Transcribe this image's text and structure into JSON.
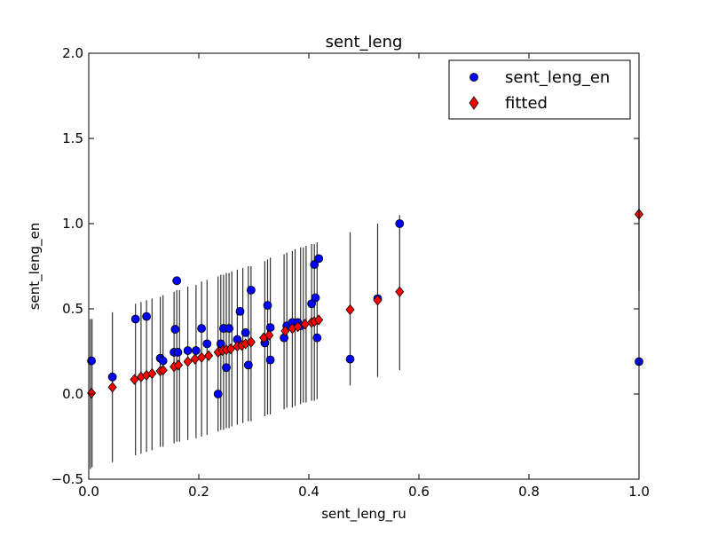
{
  "chart_data": {
    "type": "scatter",
    "title": "sent_leng",
    "xlabel": "sent_leng_ru",
    "ylabel": "sent_leng_en",
    "xlim": [
      0.0,
      1.0
    ],
    "ylim": [
      -0.5,
      2.0
    ],
    "xticks": [
      "0.0",
      "0.2",
      "0.4",
      "0.6",
      "0.8",
      "1.0"
    ],
    "yticks": [
      "−0.5",
      "0.0",
      "0.5",
      "1.0",
      "1.5",
      "2.0"
    ],
    "xtick_values": [
      0.0,
      0.2,
      0.4,
      0.6,
      0.8,
      1.0
    ],
    "ytick_values": [
      -0.5,
      0.0,
      0.5,
      1.0,
      1.5,
      2.0
    ],
    "grid": false,
    "legend_position": "top-right",
    "series": [
      {
        "name": "sent_leng_en",
        "marker": "circle",
        "color": "#0000ff",
        "points": [
          [
            0.005,
            0.195
          ],
          [
            0.043,
            0.1
          ],
          [
            0.085,
            0.44
          ],
          [
            0.105,
            0.455
          ],
          [
            0.13,
            0.21
          ],
          [
            0.135,
            0.195
          ],
          [
            0.157,
            0.38
          ],
          [
            0.16,
            0.665
          ],
          [
            0.155,
            0.245
          ],
          [
            0.162,
            0.245
          ],
          [
            0.18,
            0.255
          ],
          [
            0.195,
            0.255
          ],
          [
            0.205,
            0.385
          ],
          [
            0.215,
            0.295
          ],
          [
            0.235,
            0.0
          ],
          [
            0.24,
            0.295
          ],
          [
            0.245,
            0.385
          ],
          [
            0.25,
            0.155
          ],
          [
            0.255,
            0.385
          ],
          [
            0.27,
            0.32
          ],
          [
            0.275,
            0.485
          ],
          [
            0.285,
            0.36
          ],
          [
            0.29,
            0.17
          ],
          [
            0.295,
            0.61
          ],
          [
            0.32,
            0.3
          ],
          [
            0.325,
            0.52
          ],
          [
            0.33,
            0.39
          ],
          [
            0.33,
            0.2
          ],
          [
            0.355,
            0.33
          ],
          [
            0.36,
            0.4
          ],
          [
            0.37,
            0.42
          ],
          [
            0.38,
            0.42
          ],
          [
            0.385,
            0.4
          ],
          [
            0.405,
            0.53
          ],
          [
            0.41,
            0.76
          ],
          [
            0.412,
            0.565
          ],
          [
            0.415,
            0.33
          ],
          [
            0.418,
            0.795
          ],
          [
            0.475,
            0.205
          ],
          [
            0.525,
            0.56
          ],
          [
            0.565,
            1.0
          ],
          [
            1.0,
            0.19
          ]
        ]
      },
      {
        "name": "fitted",
        "marker": "diamond",
        "color": "#ff0000",
        "points": [
          [
            0.005,
            0.005
          ],
          [
            0.043,
            0.04
          ],
          [
            0.083,
            0.085
          ],
          [
            0.095,
            0.1
          ],
          [
            0.105,
            0.11
          ],
          [
            0.115,
            0.12
          ],
          [
            0.13,
            0.135
          ],
          [
            0.135,
            0.14
          ],
          [
            0.155,
            0.16
          ],
          [
            0.163,
            0.17
          ],
          [
            0.18,
            0.19
          ],
          [
            0.193,
            0.205
          ],
          [
            0.205,
            0.215
          ],
          [
            0.218,
            0.225
          ],
          [
            0.235,
            0.245
          ],
          [
            0.243,
            0.255
          ],
          [
            0.25,
            0.26
          ],
          [
            0.258,
            0.265
          ],
          [
            0.27,
            0.28
          ],
          [
            0.278,
            0.285
          ],
          [
            0.285,
            0.295
          ],
          [
            0.295,
            0.305
          ],
          [
            0.318,
            0.33
          ],
          [
            0.328,
            0.345
          ],
          [
            0.357,
            0.37
          ],
          [
            0.37,
            0.385
          ],
          [
            0.38,
            0.395
          ],
          [
            0.393,
            0.41
          ],
          [
            0.405,
            0.42
          ],
          [
            0.41,
            0.425
          ],
          [
            0.418,
            0.435
          ],
          [
            0.475,
            0.495
          ],
          [
            0.525,
            0.55
          ],
          [
            0.565,
            0.6
          ],
          [
            1.0,
            1.055
          ]
        ]
      }
    ],
    "error_bars": {
      "color": "#333333",
      "segments": [
        [
          0.003,
          -0.44,
          0.44
        ],
        [
          0.006,
          -0.43,
          0.44
        ],
        [
          0.043,
          -0.4,
          0.48
        ],
        [
          0.085,
          -0.36,
          0.53
        ],
        [
          0.095,
          -0.35,
          0.54
        ],
        [
          0.105,
          -0.34,
          0.55
        ],
        [
          0.115,
          -0.33,
          0.56
        ],
        [
          0.13,
          -0.31,
          0.57
        ],
        [
          0.135,
          -0.31,
          0.58
        ],
        [
          0.155,
          -0.29,
          0.6
        ],
        [
          0.16,
          -0.28,
          0.61
        ],
        [
          0.165,
          -0.28,
          0.61
        ],
        [
          0.18,
          -0.27,
          0.63
        ],
        [
          0.195,
          -0.26,
          0.64
        ],
        [
          0.205,
          -0.25,
          0.66
        ],
        [
          0.215,
          -0.24,
          0.67
        ],
        [
          0.235,
          -0.22,
          0.69
        ],
        [
          0.24,
          -0.21,
          0.7
        ],
        [
          0.245,
          -0.21,
          0.7
        ],
        [
          0.25,
          -0.2,
          0.71
        ],
        [
          0.255,
          -0.2,
          0.71
        ],
        [
          0.26,
          -0.19,
          0.72
        ],
        [
          0.27,
          -0.18,
          0.73
        ],
        [
          0.28,
          -0.17,
          0.74
        ],
        [
          0.29,
          -0.16,
          0.75
        ],
        [
          0.295,
          -0.16,
          0.75
        ],
        [
          0.32,
          -0.13,
          0.78
        ],
        [
          0.325,
          -0.12,
          0.79
        ],
        [
          0.33,
          -0.12,
          0.8
        ],
        [
          0.355,
          -0.09,
          0.82
        ],
        [
          0.36,
          -0.08,
          0.83
        ],
        [
          0.37,
          -0.08,
          0.84
        ],
        [
          0.375,
          -0.07,
          0.85
        ],
        [
          0.385,
          -0.06,
          0.86
        ],
        [
          0.39,
          -0.05,
          0.86
        ],
        [
          0.395,
          -0.05,
          0.87
        ],
        [
          0.405,
          -0.04,
          0.88
        ],
        [
          0.41,
          -0.04,
          0.88
        ],
        [
          0.415,
          -0.03,
          0.89
        ],
        [
          0.475,
          0.05,
          0.95
        ],
        [
          0.525,
          0.1,
          1.0
        ],
        [
          0.565,
          0.14,
          1.05
        ],
        [
          1.0,
          0.6,
          1.5
        ]
      ]
    }
  }
}
